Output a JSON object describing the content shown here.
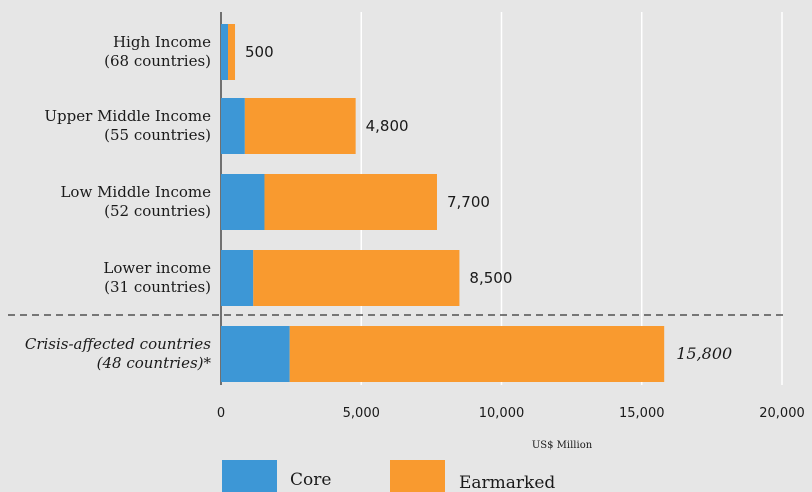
{
  "chart_data": {
    "type": "bar",
    "orientation": "horizontal",
    "stacked": true,
    "categories": [
      [
        "High Income",
        "(68 countries)"
      ],
      [
        "Upper Middle Income",
        "(55 countries)"
      ],
      [
        "Low Middle Income",
        "(52 countries)"
      ],
      [
        "Lower income",
        "(31 countries)"
      ],
      [
        "Crisis-affected countries",
        "(48 countries)*"
      ]
    ],
    "series": [
      {
        "name": "Core",
        "color": "#3d97d6",
        "values": [
          250,
          850,
          1550,
          1150,
          2450
        ]
      },
      {
        "name": "Earmarked",
        "color": "#f99a2f",
        "values": [
          250,
          3950,
          6150,
          7350,
          13350
        ]
      }
    ],
    "total_labels": [
      "500",
      "4,800",
      "7,700",
      "8,500",
      "15,800"
    ],
    "xlim": [
      0,
      20000
    ],
    "xticks": [
      0,
      5000,
      10000,
      15000,
      20000
    ],
    "xtick_labels": [
      "0",
      "5,000",
      "10,000",
      "15,000",
      "20,000"
    ],
    "xlabel": "US$ Million",
    "grid": true,
    "separator_before_category": 4,
    "legend": {
      "position": "bottom-left",
      "items": [
        {
          "label": "Core",
          "color": "#3d97d6"
        },
        {
          "label": "Earmarked",
          "color": "#f99a2f"
        }
      ]
    }
  }
}
